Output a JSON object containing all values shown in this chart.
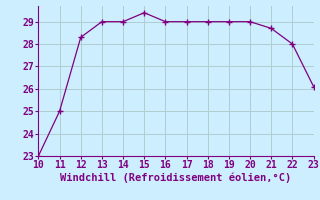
{
  "x": [
    10,
    11,
    12,
    13,
    14,
    15,
    16,
    17,
    18,
    19,
    20,
    21,
    22,
    23
  ],
  "y": [
    23.0,
    25.0,
    28.3,
    29.0,
    29.0,
    29.4,
    29.0,
    29.0,
    29.0,
    29.0,
    29.0,
    28.7,
    28.0,
    26.1
  ],
  "xlabel": "Windchill (Refroidissement éolien,°C)",
  "xlim": [
    10,
    23
  ],
  "ylim": [
    23,
    29.7
  ],
  "yticks": [
    23,
    24,
    25,
    26,
    27,
    28,
    29
  ],
  "xticks": [
    10,
    11,
    12,
    13,
    14,
    15,
    16,
    17,
    18,
    19,
    20,
    21,
    22,
    23
  ],
  "line_color": "#800080",
  "marker": "+",
  "bg_color": "#cceeff",
  "grid_color": "#b0cece",
  "tick_label_color": "#800080",
  "xlabel_color": "#800080",
  "xlabel_fontsize": 7.5,
  "tick_fontsize": 7
}
